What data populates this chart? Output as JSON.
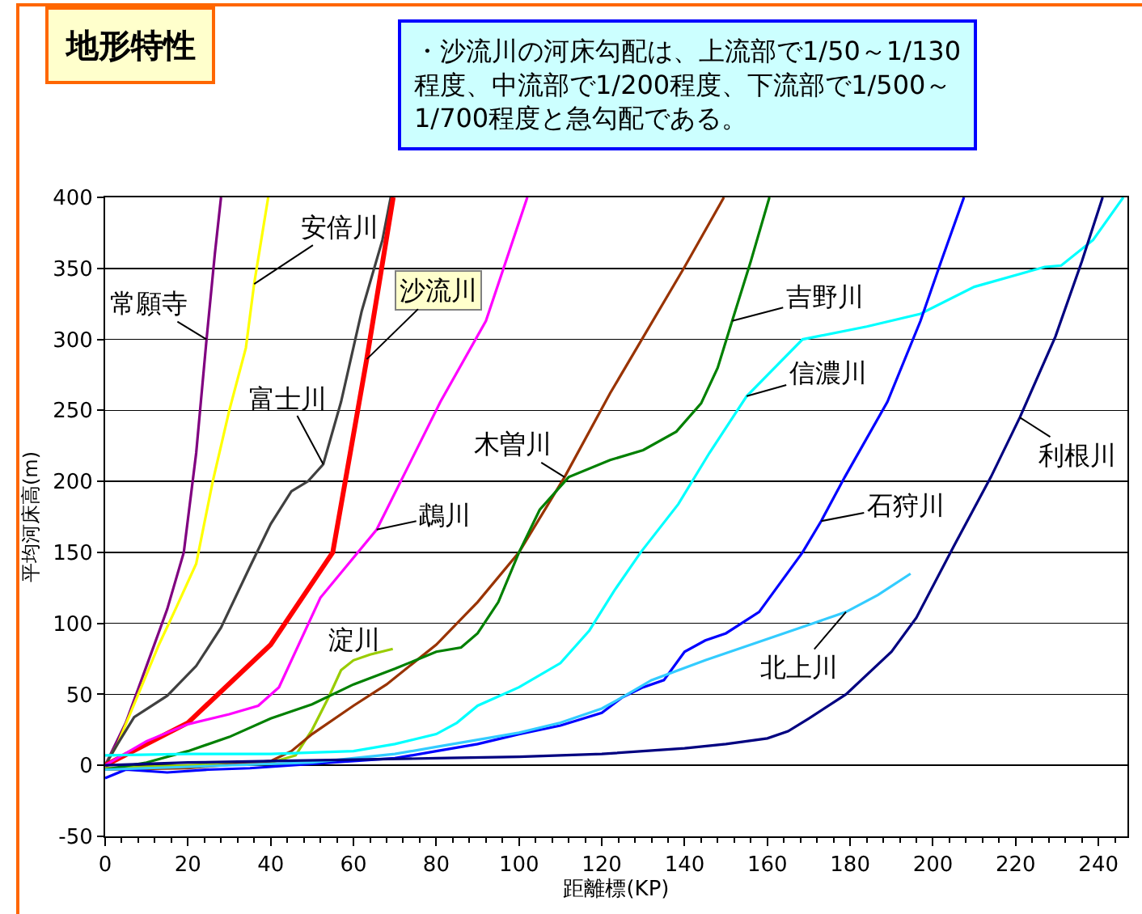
{
  "chart_data": {
    "type": "line",
    "title": "地形特性",
    "subtitle": "・沙流川の河床勾配は、上流部で1/50～1/130\n程度、中流部で1/200程度、下流部で1/500～\n1/700程度と急勾配である。",
    "xlabel": "距離標(KP)",
    "ylabel": "平均河床高(m)",
    "xlim": [
      0,
      247
    ],
    "xticks": [
      0,
      20,
      40,
      60,
      80,
      100,
      120,
      140,
      160,
      180,
      200,
      220,
      240
    ],
    "ylim": [
      -50,
      400
    ],
    "yticks": [
      -50,
      0,
      50,
      100,
      150,
      200,
      250,
      300,
      350,
      400
    ],
    "grid": "y",
    "legend": false,
    "marker": "none",
    "line_style": "solid",
    "series": [
      {
        "name": "常願寺",
        "color": "#800080",
        "x": [
          0,
          5,
          10,
          15,
          19,
          22,
          24.5,
          26.5,
          28
        ],
        "values": [
          0,
          30,
          70,
          110,
          150,
          220,
          300,
          360,
          400
        ]
      },
      {
        "name": "安倍川",
        "color": "#ffff00",
        "x": [
          0,
          3,
          8,
          13,
          17,
          22,
          26,
          30,
          34,
          36,
          38,
          39.4
        ],
        "values": [
          0,
          15,
          50,
          85,
          110,
          142,
          200,
          250,
          294,
          339,
          375,
          400
        ]
      },
      {
        "name": "富士川",
        "color": "#404040",
        "x": [
          0,
          3,
          7,
          15,
          22,
          28,
          35,
          40,
          45,
          49,
          52.7,
          57,
          62,
          67,
          69
        ],
        "values": [
          0,
          15,
          34,
          49,
          70,
          97,
          140,
          170,
          193,
          200,
          212,
          256,
          320,
          370,
          400
        ]
      },
      {
        "name": "沙流川",
        "color": "#ff0000",
        "x": [
          0,
          20,
          40,
          55,
          63.2,
          69.6
        ],
        "values": [
          0,
          30,
          85,
          150,
          286,
          400
        ]
      },
      {
        "name": "鵡川",
        "color": "#ff00ff",
        "x": [
          0,
          10,
          20,
          30,
          37,
          42,
          52,
          65.6,
          81,
          92,
          102
        ],
        "values": [
          0,
          17,
          29,
          36,
          42,
          55,
          118,
          166,
          256,
          313,
          400
        ]
      },
      {
        "name": "淀川",
        "color": "#99cc00",
        "x": [
          0,
          20,
          40,
          46,
          50,
          54,
          57,
          60,
          64,
          69.5
        ],
        "values": [
          -2,
          0,
          2,
          7,
          25,
          48,
          67,
          74,
          78,
          82
        ]
      },
      {
        "name": "木曽川",
        "color": "#993300",
        "x": [
          0,
          20,
          40,
          45,
          50,
          60,
          68,
          80,
          90,
          100,
          111,
          122,
          140,
          149.5
        ],
        "values": [
          -3,
          -2,
          3,
          10,
          22,
          42,
          57,
          85,
          115,
          150,
          203,
          262,
          351,
          400
        ]
      },
      {
        "name": "吉野川",
        "color": "#008000",
        "x": [
          0,
          10,
          20,
          30,
          40,
          50,
          60,
          70,
          80,
          86,
          90,
          95,
          100,
          105,
          112,
          122,
          130,
          138,
          144,
          148,
          151.5,
          156,
          160.5
        ],
        "values": [
          -3,
          2,
          10,
          20,
          33,
          43,
          57,
          68,
          80,
          83,
          93,
          115,
          150,
          180,
          203,
          215,
          222,
          235,
          255,
          280,
          313,
          355,
          400
        ]
      },
      {
        "name": "信濃川",
        "color": "#00ffff",
        "x": [
          0,
          20,
          40,
          60,
          70,
          80,
          85,
          90,
          100,
          110,
          117,
          123,
          129.4,
          138.5,
          146,
          155,
          168.5,
          184,
          197,
          210,
          227,
          231,
          238.7,
          246
        ],
        "values": [
          7,
          8,
          8,
          10,
          15,
          22,
          30,
          42,
          55,
          72,
          95,
          123,
          150,
          184,
          220,
          260,
          300,
          309,
          318,
          337,
          351,
          352,
          370,
          400
        ]
      },
      {
        "name": "石狩川",
        "color": "#0000ff",
        "x": [
          0,
          5,
          15,
          25,
          35,
          50,
          60,
          70,
          80,
          90,
          100,
          110,
          120,
          125,
          130,
          135,
          140,
          145,
          150,
          158,
          168.5,
          173,
          178.7,
          189,
          197,
          202,
          207.5
        ],
        "values": [
          -9,
          -3,
          -5,
          -3,
          -2,
          1,
          3,
          5,
          10,
          15,
          22,
          28,
          37,
          48,
          55,
          60,
          80,
          88,
          93,
          108,
          150,
          172,
          203,
          256,
          313,
          355,
          400
        ]
      },
      {
        "name": "北上川",
        "color": "#33ccff",
        "x": [
          0,
          20,
          40,
          50,
          60,
          70,
          80,
          90,
          100,
          110,
          115,
          120,
          125,
          132,
          145,
          158,
          171,
          179,
          186.7,
          194.6
        ],
        "values": [
          -3,
          -1,
          1,
          2,
          5,
          8,
          13,
          18,
          23,
          30,
          35,
          40,
          48,
          60,
          74,
          87,
          100,
          108,
          120,
          135
        ]
      },
      {
        "name": "利根川",
        "color": "#000080",
        "x": [
          0,
          20,
          40,
          60,
          80,
          100,
          120,
          140,
          150,
          160,
          165,
          170,
          179,
          190,
          196,
          205,
          214,
          221,
          229.6,
          236,
          241
        ],
        "values": [
          0,
          2,
          3,
          4,
          5,
          6,
          8,
          12,
          15,
          19,
          24,
          33,
          50,
          80,
          104,
          154,
          203,
          245,
          302,
          355,
          400
        ]
      }
    ]
  }
}
